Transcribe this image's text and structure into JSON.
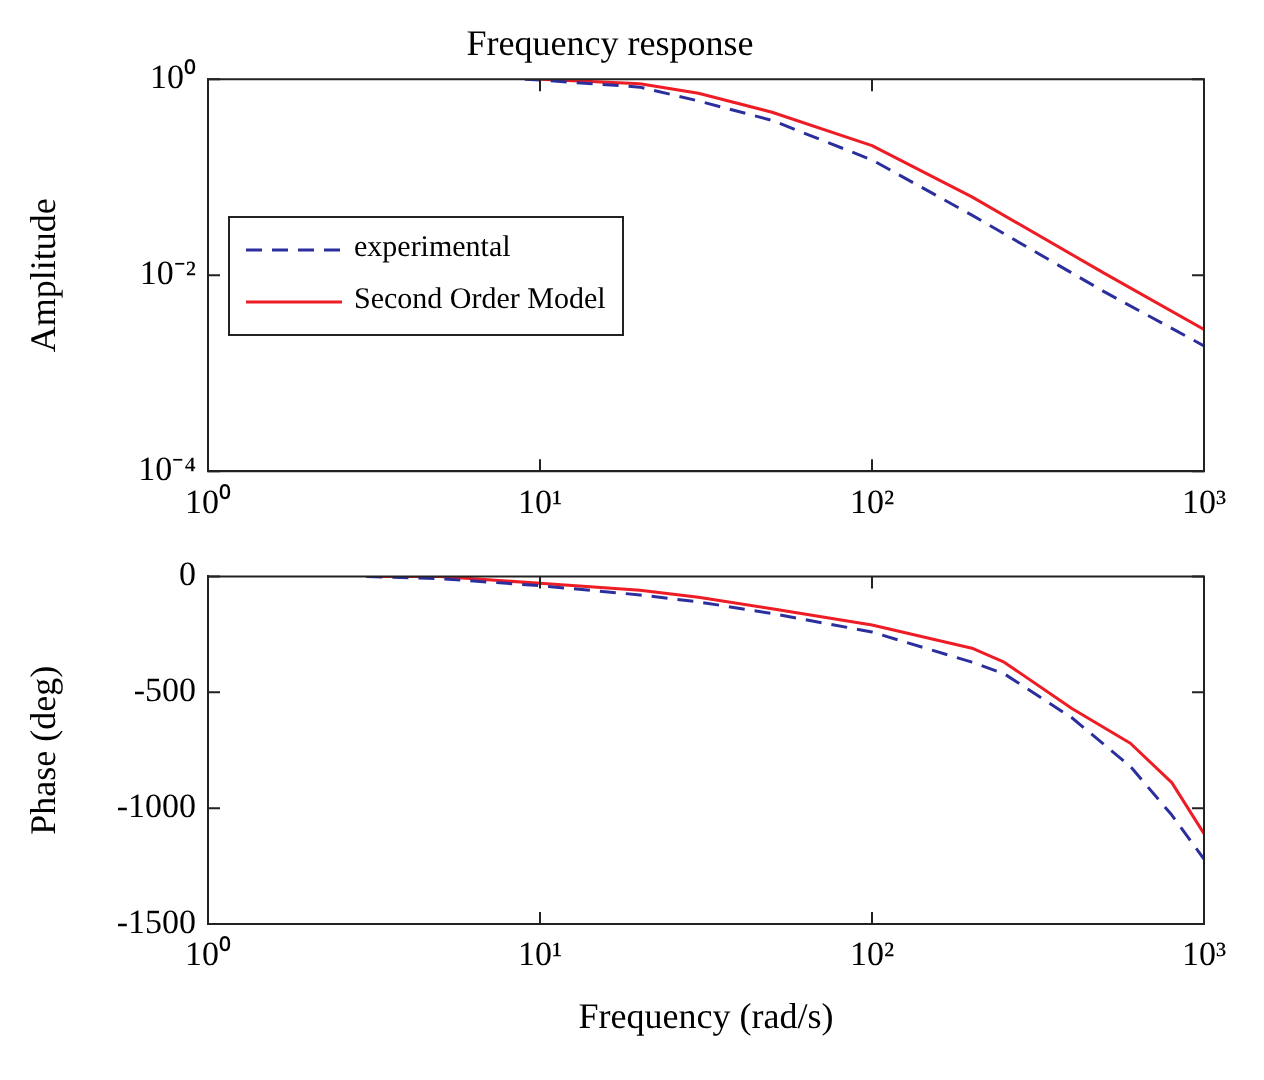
{
  "chart_data": [
    {
      "type": "line",
      "title": "Frequency response",
      "ylabel": "Amplitude",
      "log": "xy",
      "legend": "left",
      "grid": false,
      "marker": "none",
      "x": [
        9,
        10,
        20,
        30,
        50,
        100,
        200,
        500,
        1000
      ],
      "xlim": [
        1,
        1000
      ],
      "xticks": [
        {
          "value": 1,
          "label": "10⁰"
        },
        {
          "value": 10,
          "label": "10¹"
        },
        {
          "value": 100,
          "label": "10²"
        },
        {
          "value": 1000,
          "label": "10³"
        }
      ],
      "ylim": [
        0.0001,
        1
      ],
      "yticks": [
        {
          "value": 0.0001,
          "label": "10⁻⁴"
        },
        {
          "value": 0.01,
          "label": "10⁻²"
        },
        {
          "value": 1,
          "label": "10⁰"
        }
      ],
      "series": [
        {
          "name": "experimental",
          "color": "#2b2f9e",
          "line_style": "dashed",
          "values": [
            1.0,
            0.98,
            0.83,
            0.6,
            0.38,
            0.15,
            0.041,
            0.0068,
            0.0019
          ]
        },
        {
          "name": "Second Order Model",
          "color": "#ee1c25",
          "line_style": "solid",
          "values": [
            null,
            1.0,
            0.9,
            0.72,
            0.46,
            0.21,
            0.063,
            0.0105,
            0.0028
          ]
        }
      ]
    },
    {
      "type": "line",
      "xlabel": "Frequency (rad/s)",
      "ylabel": "Phase (deg)",
      "log": "x",
      "legend": false,
      "grid": false,
      "marker": "none",
      "x": [
        3,
        5,
        10,
        20,
        30,
        50,
        100,
        200,
        250,
        400,
        600,
        800,
        1000
      ],
      "xlim": [
        1,
        1000
      ],
      "xticks": [
        {
          "value": 1,
          "label": "10⁰"
        },
        {
          "value": 10,
          "label": "10¹"
        },
        {
          "value": 100,
          "label": "10²"
        },
        {
          "value": 1000,
          "label": "10³"
        }
      ],
      "ylim": [
        -1500,
        0
      ],
      "yticks": [
        -1500,
        -1000,
        -500,
        0
      ],
      "series": [
        {
          "color": "#2b2f9e",
          "line_style": "dashed",
          "values": [
            0,
            -10,
            -40,
            -80,
            -110,
            -160,
            -240,
            -370,
            -420,
            -610,
            -820,
            -1030,
            -1220
          ]
        },
        {
          "color": "#ee1c25",
          "line_style": "solid",
          "values": [
            0,
            0,
            -30,
            -60,
            -90,
            -140,
            -210,
            -310,
            -370,
            -570,
            -720,
            -890,
            -1110
          ]
        }
      ]
    }
  ]
}
